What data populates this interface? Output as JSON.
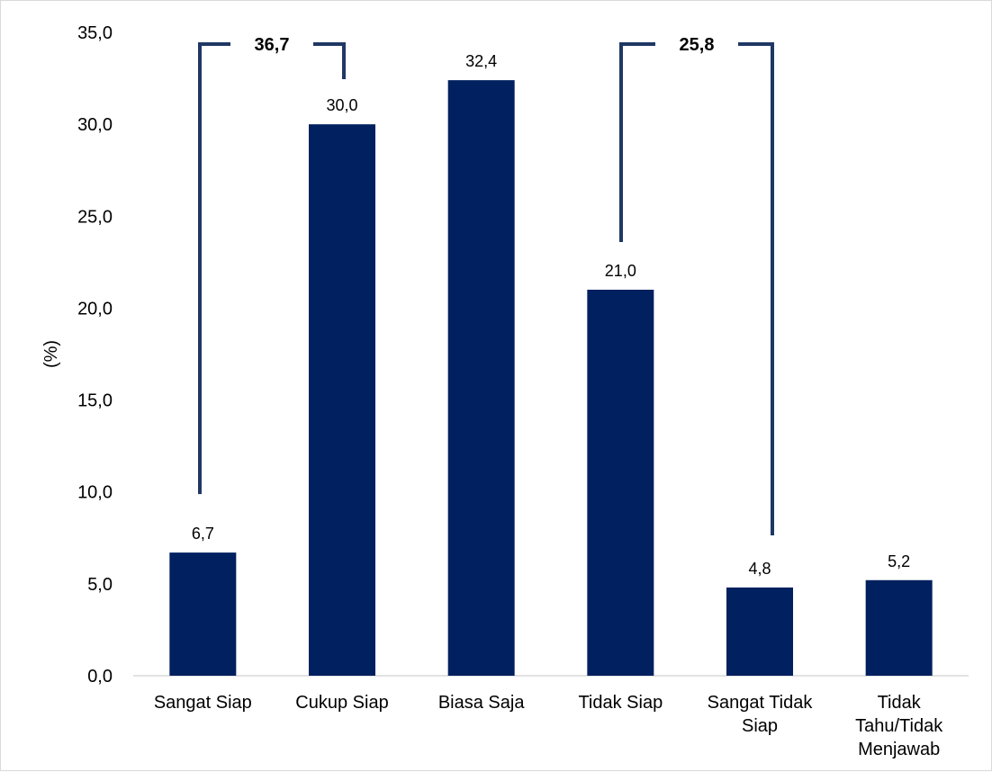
{
  "chart_data": {
    "type": "bar",
    "ylabel": "(%)",
    "ylim": [
      0,
      35
    ],
    "yticks": [
      "0,0",
      "5,0",
      "10,0",
      "15,0",
      "20,0",
      "25,0",
      "30,0",
      "35,0"
    ],
    "grid": false,
    "categories": [
      [
        "Sangat Siap"
      ],
      [
        "Cukup Siap"
      ],
      [
        "Biasa Saja"
      ],
      [
        "Tidak Siap"
      ],
      [
        "Sangat Tidak",
        "Siap"
      ],
      [
        "Tidak",
        "Tahu/Tidak",
        "Menjawab"
      ]
    ],
    "values": [
      6.7,
      30.0,
      32.4,
      21.0,
      4.8,
      5.2
    ],
    "data_labels": [
      "6,7",
      "30,0",
      "32,4",
      "21,0",
      "4,8",
      "5,2"
    ],
    "bar_color": "#002060",
    "bracket_color": "#1f3864",
    "annotations": [
      {
        "label": "36,7",
        "from_index": 0,
        "to_index": 1
      },
      {
        "label": "25,8",
        "from_index": 3,
        "to_index": 4
      }
    ]
  }
}
